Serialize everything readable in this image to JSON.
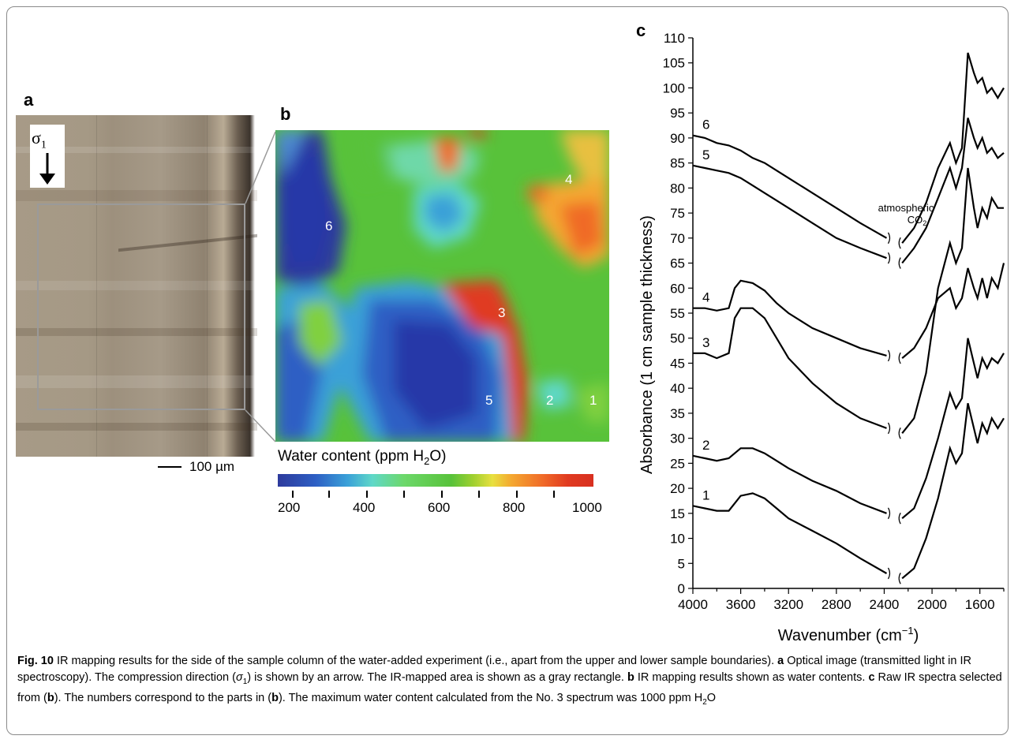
{
  "panels": {
    "a": "a",
    "b": "b",
    "c": "c"
  },
  "panel_a": {
    "sigma_symbol": "σ",
    "sigma_subscript": "1",
    "arrow": "down-arrow-icon",
    "scale_label": "100 µm"
  },
  "panel_b": {
    "area_labels": [
      "1",
      "2",
      "3",
      "4",
      "5",
      "6"
    ],
    "colorbar_title_prefix": "Water content (ppm H",
    "colorbar_title_sub": "2",
    "colorbar_title_suffix": "O)",
    "colorbar_ticks": [
      "200",
      "400",
      "600",
      "800",
      "1000"
    ],
    "colorbar_colors": [
      "#2d3a9c",
      "#3aa0d8",
      "#6cd86a",
      "#e8e040",
      "#f06a28",
      "#d83020"
    ]
  },
  "chart_data": {
    "type": "line",
    "xlabel_prefix": "Wavenumber (cm",
    "xlabel_sup": "−1",
    "xlabel_suffix": ")",
    "ylabel": "Absorbance (1 cm sample thickness)",
    "xlim": [
      4000,
      1400
    ],
    "ylim": [
      0,
      110
    ],
    "x_ticks": [
      "4000",
      "3600",
      "3200",
      "2800",
      "2400",
      "2000",
      "1600"
    ],
    "y_ticks": [
      "0",
      "5",
      "10",
      "15",
      "20",
      "25",
      "30",
      "35",
      "40",
      "45",
      "50",
      "55",
      "60",
      "65",
      "70",
      "75",
      "80",
      "85",
      "90",
      "95",
      "100",
      "105",
      "110"
    ],
    "annotation_line1": "atmospheric",
    "annotation_line2_prefix": "CO",
    "annotation_line2_sub": "2",
    "gap_range": [
      2380,
      2250
    ],
    "series": [
      {
        "name": "1",
        "x": [
          4000,
          3900,
          3800,
          3700,
          3600,
          3500,
          3400,
          3300,
          3200,
          3000,
          2800,
          2600,
          2380,
          2250,
          2150,
          2050,
          1950,
          1850,
          1800,
          1750,
          1700,
          1650,
          1620,
          1580,
          1540,
          1500,
          1450,
          1400
        ],
        "y": [
          16.5,
          16,
          15.5,
          15.5,
          18.5,
          19,
          18,
          16,
          14,
          11.5,
          9,
          6,
          3,
          2,
          4,
          10,
          18,
          28,
          25,
          27,
          37,
          32,
          29,
          33,
          31,
          34,
          32,
          34
        ]
      },
      {
        "name": "2",
        "x": [
          4000,
          3900,
          3800,
          3700,
          3600,
          3500,
          3400,
          3300,
          3200,
          3000,
          2800,
          2600,
          2380,
          2250,
          2150,
          2050,
          1950,
          1850,
          1800,
          1750,
          1700,
          1650,
          1620,
          1580,
          1540,
          1500,
          1450,
          1400
        ],
        "y": [
          26.5,
          26,
          25.5,
          26,
          28,
          28,
          27,
          25.5,
          24,
          21.5,
          19.5,
          17,
          15,
          14,
          16,
          22,
          30,
          39,
          36,
          38,
          50,
          45,
          42,
          46,
          44,
          46,
          45,
          47
        ]
      },
      {
        "name": "3",
        "x": [
          4000,
          3900,
          3800,
          3700,
          3650,
          3600,
          3500,
          3400,
          3300,
          3200,
          3000,
          2800,
          2600,
          2380,
          2250,
          2150,
          2050,
          1950,
          1850,
          1800,
          1750,
          1700,
          1650,
          1620,
          1580,
          1540,
          1500,
          1450,
          1400
        ],
        "y": [
          47,
          47,
          46,
          47,
          54,
          56,
          56,
          54,
          50,
          46,
          41,
          37,
          34,
          32,
          31,
          34,
          43,
          60,
          69,
          65,
          68,
          84,
          76,
          72,
          76,
          74,
          78,
          76,
          76
        ]
      },
      {
        "name": "4",
        "x": [
          4000,
          3900,
          3800,
          3700,
          3650,
          3600,
          3500,
          3400,
          3300,
          3200,
          3000,
          2800,
          2600,
          2380,
          2250,
          2150,
          2050,
          1950,
          1850,
          1800,
          1750,
          1700,
          1650,
          1620,
          1580,
          1540,
          1500,
          1450,
          1400
        ],
        "y": [
          56,
          56,
          55.5,
          56,
          60,
          61.5,
          61,
          59.5,
          57,
          55,
          52,
          50,
          48,
          46.5,
          46,
          48,
          52,
          58,
          60,
          56,
          58,
          64,
          60,
          58,
          62,
          58,
          62,
          60,
          65
        ]
      },
      {
        "name": "5",
        "x": [
          4000,
          3900,
          3800,
          3700,
          3600,
          3500,
          3400,
          3300,
          3200,
          3000,
          2800,
          2600,
          2380,
          2250,
          2150,
          2050,
          1950,
          1850,
          1800,
          1750,
          1700,
          1650,
          1620,
          1580,
          1540,
          1500,
          1450,
          1400
        ],
        "y": [
          84.5,
          84,
          83.5,
          83,
          82,
          80.5,
          79,
          77.5,
          76,
          73,
          70,
          68,
          66,
          65,
          68,
          72,
          78,
          84,
          80,
          84,
          94,
          90,
          88,
          90,
          87,
          88,
          86,
          87
        ]
      },
      {
        "name": "6",
        "x": [
          4000,
          3900,
          3800,
          3700,
          3600,
          3500,
          3400,
          3300,
          3200,
          3000,
          2800,
          2600,
          2380,
          2250,
          2150,
          2050,
          1950,
          1850,
          1800,
          1750,
          1700,
          1650,
          1620,
          1580,
          1540,
          1500,
          1450,
          1400
        ],
        "y": [
          90.5,
          90,
          89,
          88.5,
          87.5,
          86,
          85,
          83.5,
          82,
          79,
          76,
          73,
          70,
          69,
          72,
          77,
          84,
          89,
          85,
          88,
          107,
          103,
          101,
          102,
          99,
          100,
          98,
          100
        ]
      }
    ]
  },
  "caption": {
    "fig_label": "Fig. 10",
    "part1": "  IR mapping results for the side of the sample column of the water-added experiment (i.e., apart from the upper and lower sample boundaries). ",
    "a": "a",
    "part2": " Optical image (transmitted light in IR spectroscopy). The compression direction (",
    "sigma": "σ",
    "sigma_sub": "1",
    "part3": ") is shown by an arrow. The IR-mapped area is shown as a gray rectangle. ",
    "b": "b",
    "part4": " IR mapping results shown as water contents. ",
    "c": "c",
    "part5": " Raw IR spectra selected from (",
    "b2": "b",
    "part6": "). The numbers correspond to the parts in (",
    "b3": "b",
    "part7": "). The maximum water content calculated from the No. 3 spectrum was 1000 ppm H",
    "h2o_sub": "2",
    "part8": "O"
  }
}
